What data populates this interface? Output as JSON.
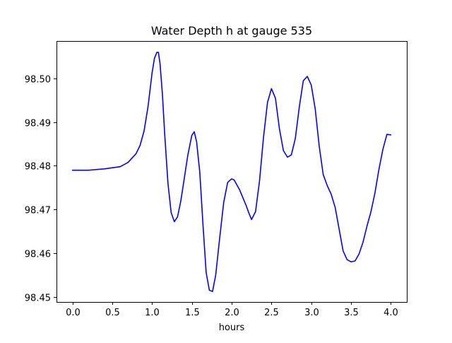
{
  "chart_data": {
    "type": "line",
    "title": "Water Depth h at gauge 535",
    "xlabel": "hours",
    "ylabel": "",
    "xlim": [
      -0.2,
      4.2
    ],
    "ylim": [
      98.4488,
      98.5086
    ],
    "grid": false,
    "x_ticks": [
      0.0,
      0.5,
      1.0,
      1.5,
      2.0,
      2.5,
      3.0,
      3.5,
      4.0
    ],
    "x_tick_labels": [
      "0.0",
      "0.5",
      "1.0",
      "1.5",
      "2.0",
      "2.5",
      "3.0",
      "3.5",
      "4.0"
    ],
    "y_ticks": [
      98.45,
      98.46,
      98.47,
      98.48,
      98.49,
      98.5
    ],
    "y_tick_labels": [
      "98.45",
      "98.46",
      "98.47",
      "98.48",
      "98.49",
      "98.50"
    ],
    "series": [
      {
        "color": "#0000ff",
        "x": [
          0.0,
          0.2,
          0.4,
          0.6,
          0.7,
          0.8,
          0.85,
          0.9,
          0.95,
          1.0,
          1.03,
          1.06,
          1.08,
          1.1,
          1.13,
          1.16,
          1.2,
          1.24,
          1.28,
          1.32,
          1.36,
          1.4,
          1.45,
          1.5,
          1.53,
          1.56,
          1.6,
          1.64,
          1.68,
          1.72,
          1.76,
          1.8,
          1.85,
          1.9,
          1.95,
          1.98,
          2.0,
          2.03,
          2.1,
          2.18,
          2.22,
          2.25,
          2.3,
          2.35,
          2.4,
          2.45,
          2.5,
          2.55,
          2.6,
          2.65,
          2.7,
          2.75,
          2.8,
          2.85,
          2.9,
          2.95,
          3.0,
          3.05,
          3.1,
          3.15,
          3.2,
          3.25,
          3.3,
          3.35,
          3.4,
          3.45,
          3.5,
          3.55,
          3.6,
          3.65,
          3.7,
          3.75,
          3.8,
          3.85,
          3.9,
          3.95,
          4.0
        ],
        "values": [
          98.479,
          98.479,
          98.4793,
          98.4798,
          98.4808,
          98.4828,
          98.4847,
          98.488,
          98.4936,
          98.5012,
          98.5046,
          98.506,
          98.506,
          98.5035,
          98.4965,
          98.487,
          98.476,
          98.4693,
          98.4672,
          98.4683,
          98.4718,
          98.4765,
          98.4825,
          98.487,
          98.4878,
          98.4855,
          98.4785,
          98.4665,
          98.4555,
          98.4515,
          98.4512,
          98.455,
          98.4635,
          98.4716,
          98.4762,
          98.4767,
          98.477,
          98.4768,
          98.4745,
          98.471,
          98.469,
          98.4677,
          98.4695,
          98.4765,
          98.4865,
          98.4945,
          98.4977,
          98.4955,
          98.4885,
          98.4835,
          98.482,
          98.4825,
          98.4863,
          98.4935,
          98.4995,
          98.5005,
          98.4985,
          98.493,
          98.4845,
          98.478,
          98.4755,
          98.4735,
          98.4705,
          98.4655,
          98.4605,
          98.4585,
          98.458,
          98.4582,
          98.4598,
          98.4625,
          98.4662,
          98.4695,
          98.4738,
          98.4792,
          98.4838,
          98.4872,
          98.4871
        ]
      }
    ]
  }
}
